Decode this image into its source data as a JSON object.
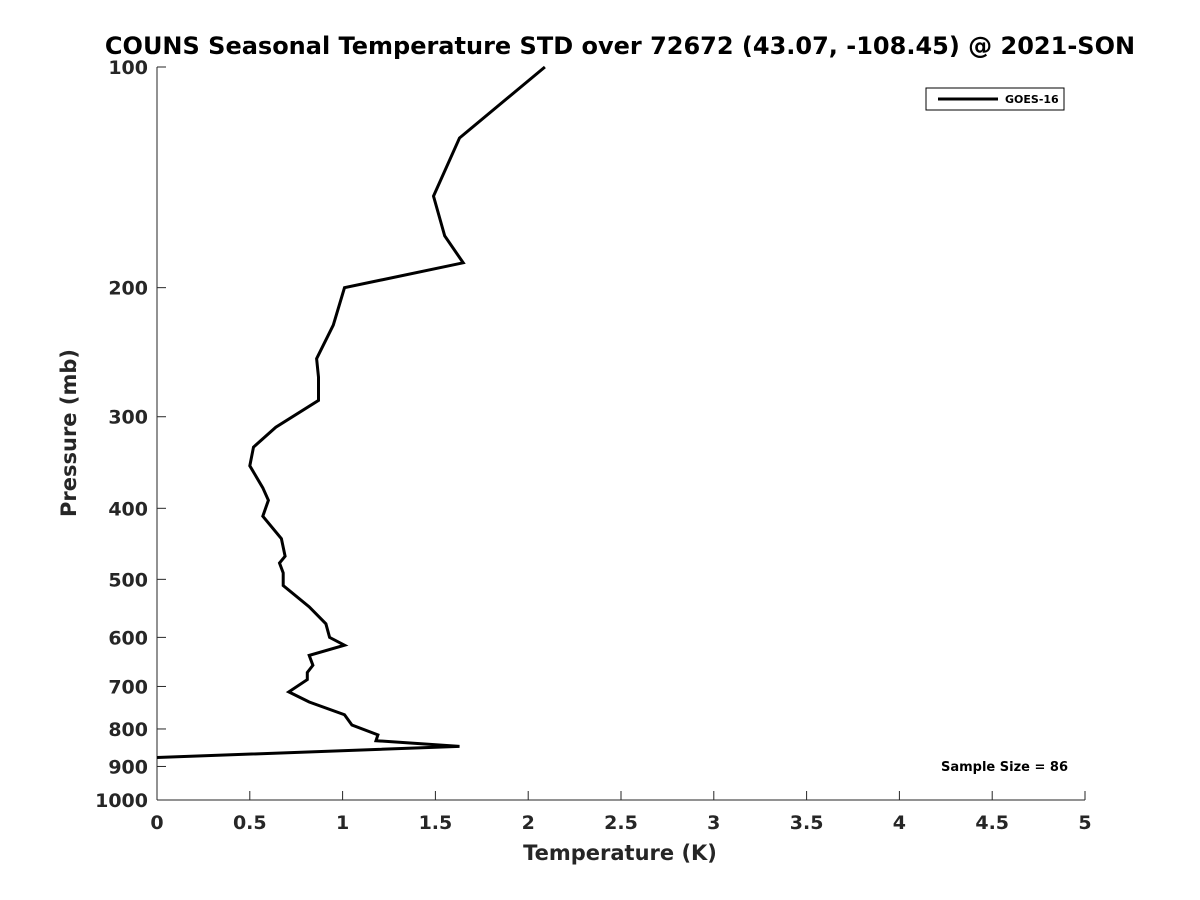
{
  "chart_data": {
    "type": "line",
    "title": "COUNS Seasonal Temperature STD over 72672 (43.07, -108.45) @ 2021-SON",
    "xlabel": "Temperature (K)",
    "ylabel": "Pressure (mb)",
    "xlim": [
      0,
      5
    ],
    "ylim": [
      100,
      1000
    ],
    "y_scale": "log",
    "y_reversed": true,
    "x_ticks": [
      "0",
      "0.5",
      "1",
      "1.5",
      "2",
      "2.5",
      "3",
      "3.5",
      "4",
      "4.5",
      "5"
    ],
    "y_ticks": [
      "100",
      "200",
      "300",
      "400",
      "500",
      "600",
      "700",
      "800",
      "900",
      "1000"
    ],
    "grid": false,
    "legend_position": "top-right",
    "annotation": "Sample Size = 86",
    "series": [
      {
        "name": "GOES-16",
        "color": "#000000",
        "points": [
          [
            2.09,
            100
          ],
          [
            1.63,
            125
          ],
          [
            1.49,
            150
          ],
          [
            1.55,
            170
          ],
          [
            1.65,
            185
          ],
          [
            1.01,
            200
          ],
          [
            0.95,
            225
          ],
          [
            0.86,
            250
          ],
          [
            0.87,
            265
          ],
          [
            0.87,
            285
          ],
          [
            0.64,
            310
          ],
          [
            0.52,
            330
          ],
          [
            0.5,
            350
          ],
          [
            0.57,
            375
          ],
          [
            0.6,
            390
          ],
          [
            0.57,
            410
          ],
          [
            0.67,
            440
          ],
          [
            0.69,
            465
          ],
          [
            0.66,
            475
          ],
          [
            0.68,
            490
          ],
          [
            0.68,
            510
          ],
          [
            0.82,
            545
          ],
          [
            0.91,
            575
          ],
          [
            0.93,
            600
          ],
          [
            1.01,
            615
          ],
          [
            0.82,
            635
          ],
          [
            0.84,
            655
          ],
          [
            0.81,
            670
          ],
          [
            0.81,
            685
          ],
          [
            0.71,
            712
          ],
          [
            0.82,
            735
          ],
          [
            1.01,
            765
          ],
          [
            1.05,
            790
          ],
          [
            1.19,
            815
          ],
          [
            1.18,
            830
          ],
          [
            1.63,
            845
          ],
          [
            0.0,
            875
          ]
        ]
      }
    ]
  }
}
